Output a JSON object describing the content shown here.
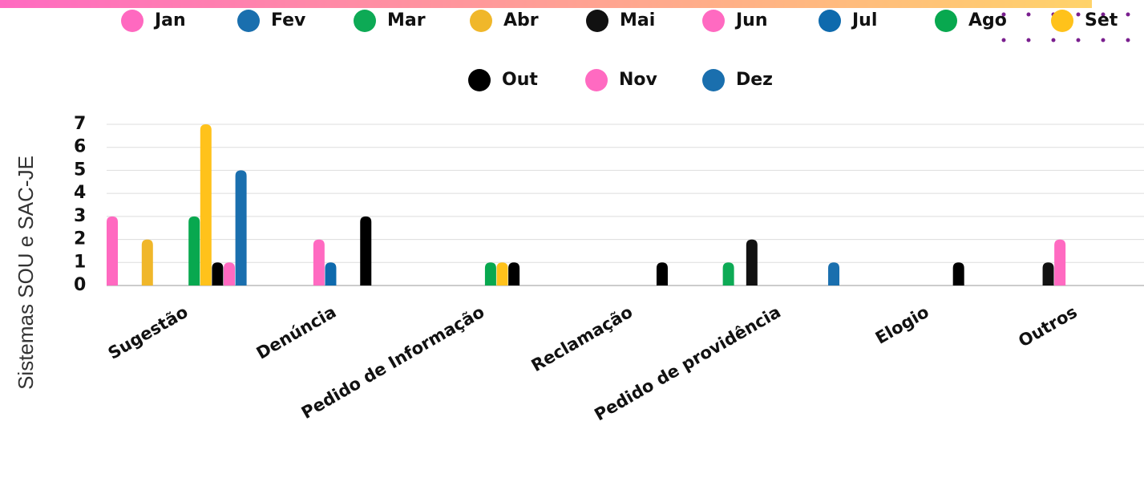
{
  "chart_data": {
    "type": "bar",
    "y_label": "Sistemas SOU e SAC-JE",
    "categories": [
      "Sugestão",
      "Denúncia",
      "Pedido de Informação",
      "Reclamação",
      "Pedido de providência",
      "Elogio",
      "Outros"
    ],
    "series": [
      {
        "name": "Jan",
        "color": "#ff69c0",
        "values": [
          3,
          0,
          0,
          0,
          0,
          0,
          0
        ]
      },
      {
        "name": "Fev",
        "color": "#1a6fae",
        "values": [
          0,
          0,
          0,
          0,
          0,
          0,
          0
        ]
      },
      {
        "name": "Mar",
        "color": "#0daa55",
        "values": [
          0,
          0,
          0,
          0,
          1,
          0,
          0
        ]
      },
      {
        "name": "Abr",
        "color": "#f0b72a",
        "values": [
          2,
          0,
          0,
          0,
          0,
          0,
          0
        ]
      },
      {
        "name": "Mai",
        "color": "#111111",
        "values": [
          0,
          0,
          0,
          0,
          2,
          0,
          1
        ]
      },
      {
        "name": "Jun",
        "color": "#ff6ac1",
        "values": [
          0,
          2,
          0,
          0,
          0,
          0,
          2
        ]
      },
      {
        "name": "Jul",
        "color": "#0e6aad",
        "values": [
          0,
          1,
          0,
          0,
          0,
          0,
          0
        ]
      },
      {
        "name": "Ago",
        "color": "#08a84f",
        "values": [
          3,
          0,
          1,
          0,
          0,
          0,
          0
        ]
      },
      {
        "name": "Set",
        "color": "#ffc21b",
        "values": [
          7,
          0,
          1,
          0,
          0,
          0,
          0
        ]
      },
      {
        "name": "Out",
        "color": "#000000",
        "values": [
          1,
          3,
          1,
          1,
          0,
          1,
          0
        ]
      },
      {
        "name": "Nov",
        "color": "#ff6ac1",
        "values": [
          1,
          0,
          0,
          0,
          0,
          0,
          0
        ]
      },
      {
        "name": "Dez",
        "color": "#1a6fae",
        "values": [
          5,
          0,
          0,
          0,
          1,
          0,
          0
        ]
      }
    ],
    "ylim": [
      0,
      7
    ],
    "yticks": [
      0,
      1,
      2,
      3,
      4,
      5,
      6,
      7
    ],
    "grid": true,
    "legend": "top"
  }
}
